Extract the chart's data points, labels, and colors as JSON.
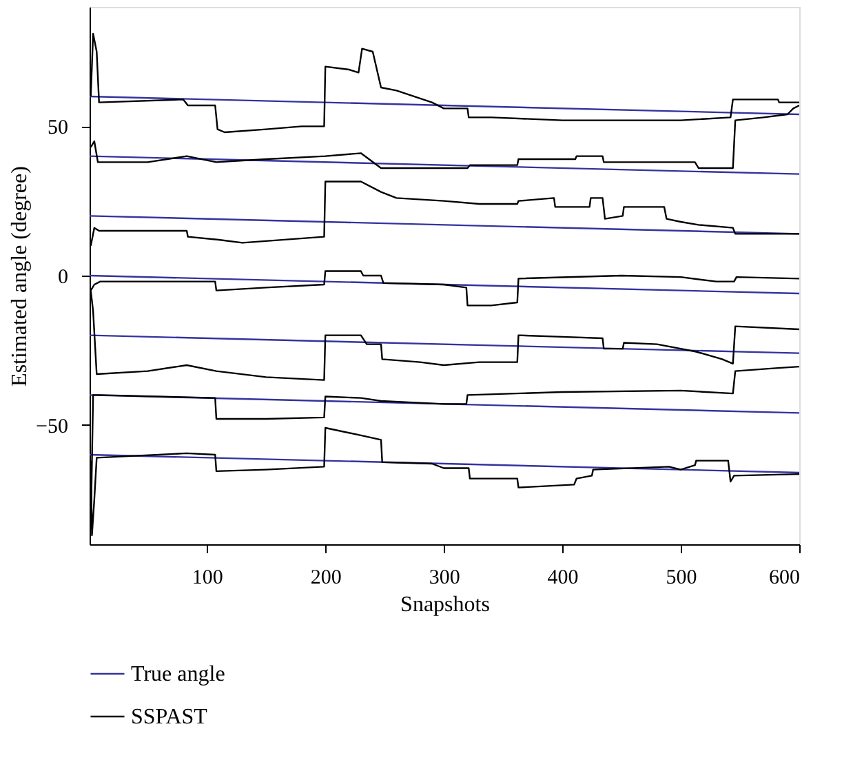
{
  "chart_data": {
    "type": "line",
    "xlabel": "Snapshots",
    "ylabel": "Estimated angle (degree)",
    "xlim": [
      1,
      600
    ],
    "xticks": [
      100,
      200,
      300,
      400,
      500,
      600
    ],
    "ylim": [
      -90,
      90
    ],
    "yticks": [
      -50,
      0,
      50
    ],
    "grid": false,
    "legend": "bottom",
    "marker": "none",
    "line_style": "solid",
    "series": [
      {
        "name": "True angle",
        "color": "#33339f",
        "x": [
          1,
          600
        ],
        "values": [
          60,
          54
        ]
      },
      {
        "color": "#33339f",
        "x": [
          1,
          600
        ],
        "values": [
          40,
          34
        ]
      },
      {
        "color": "#33339f",
        "x": [
          1,
          600
        ],
        "values": [
          20,
          14
        ]
      },
      {
        "color": "#33339f",
        "x": [
          1,
          600
        ],
        "values": [
          0,
          -6
        ]
      },
      {
        "color": "#33339f",
        "x": [
          1,
          600
        ],
        "values": [
          -20,
          -26
        ]
      },
      {
        "color": "#33339f",
        "x": [
          1,
          600
        ],
        "values": [
          -40,
          -46
        ]
      },
      {
        "color": "#33339f",
        "x": [
          1,
          600
        ],
        "values": [
          -60,
          -66
        ]
      },
      {
        "name": "SSPAST",
        "color": "#000000",
        "x": [
          2,
          4,
          7,
          9,
          80,
          84,
          107,
          109,
          115,
          150,
          180,
          199,
          200,
          220,
          228,
          231,
          240,
          247,
          260,
          290,
          300,
          320,
          321,
          340,
          400,
          430,
          500,
          542,
          544,
          582,
          583,
          600
        ],
        "values": [
          60,
          81,
          75,
          58,
          59,
          57,
          57,
          49,
          48,
          49,
          50,
          50,
          70,
          69,
          68,
          76,
          75,
          63,
          62,
          58,
          56,
          56,
          53,
          53,
          52,
          52,
          52,
          53,
          59,
          59,
          58,
          58
        ]
      },
      {
        "color": "#000000",
        "x": [
          2,
          5,
          8,
          50,
          83,
          108,
          150,
          200,
          230,
          247,
          280,
          320,
          322,
          362,
          363,
          411,
          412,
          434,
          435,
          512,
          515,
          544,
          546,
          570,
          590,
          595,
          600
        ],
        "values": [
          43,
          45,
          38,
          38,
          40,
          38,
          39,
          40,
          41,
          36,
          36,
          36,
          37,
          37,
          39,
          39,
          40,
          40,
          38,
          38,
          36,
          36,
          52,
          53,
          54,
          56,
          57
        ]
      },
      {
        "color": "#000000",
        "x": [
          2,
          5,
          9,
          83,
          84,
          110,
          130,
          199,
          200,
          230,
          247,
          260,
          300,
          330,
          362,
          363,
          393,
          394,
          423,
          424,
          434,
          436,
          451,
          452,
          486,
          488,
          500,
          515,
          544,
          546,
          600
        ],
        "values": [
          10,
          16,
          15,
          15,
          13,
          12,
          11,
          13,
          31.5,
          31.5,
          28,
          26,
          25,
          24,
          24,
          25,
          26,
          23,
          23,
          26,
          26,
          19,
          20,
          23,
          23,
          19,
          18,
          17,
          16,
          14,
          14
        ]
      },
      {
        "color": "#000000",
        "x": [
          2,
          5,
          10,
          107,
          108,
          150,
          199,
          200,
          230,
          232,
          247,
          249,
          300,
          319,
          320,
          340,
          362,
          363,
          450,
          500,
          530,
          545,
          547,
          600
        ],
        "values": [
          -5,
          -3,
          -2,
          -2,
          -5,
          -4,
          -3,
          1.5,
          1.5,
          0,
          0,
          -2.5,
          -3,
          -4,
          -10,
          -10,
          -9,
          -1,
          0,
          -0.5,
          -2,
          -2,
          -0.5,
          -1
        ]
      },
      {
        "color": "#000000",
        "x": [
          2,
          4,
          7,
          50,
          83,
          108,
          150,
          199,
          200,
          230,
          235,
          247,
          248,
          280,
          300,
          330,
          362,
          363,
          400,
          434,
          435,
          451,
          452,
          480,
          513,
          535,
          544,
          546,
          600
        ],
        "values": [
          -5,
          -12,
          -33,
          -32,
          -30,
          -32,
          -34,
          -35,
          -20,
          -20,
          -23,
          -23,
          -28,
          -29,
          -30,
          -29,
          -29,
          -20,
          -20.5,
          -21,
          -24.5,
          -24.5,
          -22.5,
          -23,
          -25.5,
          -28,
          -29.5,
          -17,
          -18
        ]
      },
      {
        "color": "#000000",
        "x": [
          2,
          4,
          10,
          107,
          108,
          150,
          199,
          200,
          230,
          247,
          300,
          319,
          320,
          400,
          500,
          544,
          546,
          580,
          600
        ],
        "values": [
          -85,
          -40,
          -40,
          -41,
          -48,
          -48,
          -47.5,
          -40.5,
          -41,
          -42,
          -43,
          -43,
          -40,
          -39,
          -38.5,
          -39.5,
          -32,
          -31,
          -30.5
        ]
      },
      {
        "color": "#000000",
        "x": [
          2,
          3,
          5,
          7,
          83,
          107,
          108,
          150,
          199,
          200,
          230,
          247,
          248,
          290,
          300,
          321,
          322,
          362,
          363,
          410,
          412,
          425,
          426,
          490,
          500,
          512,
          513,
          540,
          542,
          545,
          600
        ],
        "values": [
          -62,
          -87,
          -75,
          -61,
          -59.5,
          -60,
          -65.5,
          -65,
          -64,
          -51,
          -53.5,
          -55,
          -62.5,
          -63,
          -64.5,
          -64.5,
          -68,
          -68,
          -71,
          -70,
          -68,
          -67,
          -65,
          -64,
          -65,
          -63.5,
          -62,
          -62,
          -69,
          -67,
          -66.5
        ]
      }
    ]
  }
}
